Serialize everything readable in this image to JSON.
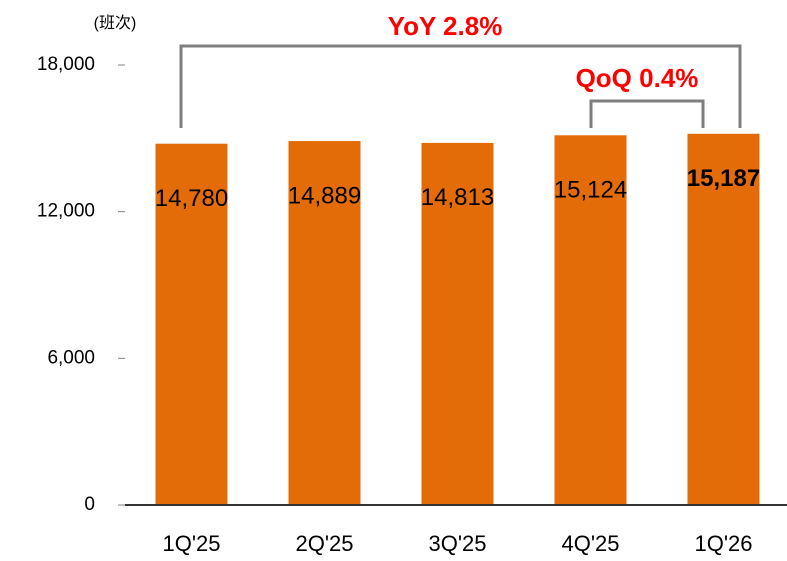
{
  "chart_data": {
    "type": "bar",
    "y_axis_label": "(班次)",
    "categories": [
      "1Q'25",
      "2Q'25",
      "3Q'25",
      "4Q'25",
      "1Q'26"
    ],
    "values": [
      14780,
      14889,
      14813,
      15124,
      15187
    ],
    "value_labels": [
      "14,780",
      "14,889",
      "14,813",
      "15,124",
      "15,187"
    ],
    "color": "#e36c09",
    "ylim": [
      0,
      18000
    ],
    "yticks": [
      0,
      {
        "value": 6000,
        "label": "6,000"
      },
      {
        "value": 12000,
        "label": "12,000"
      },
      {
        "value": 18000,
        "label": "18,000"
      }
    ],
    "annotations": [
      "YoY 2.8%",
      "QoQ 0.4%"
    ]
  }
}
